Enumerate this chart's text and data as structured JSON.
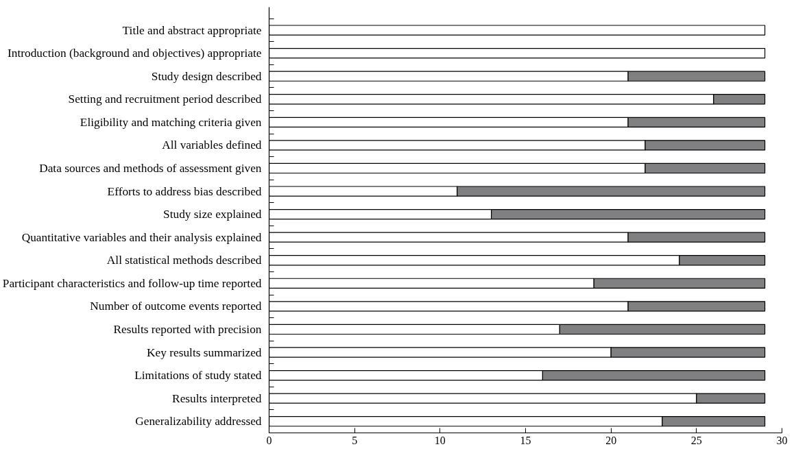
{
  "chart_data": {
    "type": "bar",
    "orientation": "horizontal",
    "stacked": true,
    "categories": [
      "Title and abstract appropriate",
      "Introduction (background and objectives) appropriate",
      "Study design described",
      "Setting and recruitment period described",
      "Eligibility and matching criteria given",
      "All variables defined",
      "Data sources and methods of assessment given",
      "Efforts to address bias described",
      "Study size explained",
      "Quantitative variables and their analysis explained",
      "All statistical methods described",
      "Participant characteristics and follow-up time reported",
      "Number of outcome events reported",
      "Results reported with precision",
      "Key results summarized",
      "Limitations of study stated",
      "Results interpreted",
      "Generalizability addressed"
    ],
    "series": [
      {
        "color": "#ffffff",
        "values": [
          29,
          29,
          21,
          26,
          21,
          22,
          22,
          11,
          13,
          21,
          24,
          19,
          21,
          17,
          20,
          16,
          25,
          23
        ]
      },
      {
        "color": "#808083",
        "values": [
          0,
          0,
          8,
          3,
          8,
          7,
          7,
          18,
          16,
          8,
          5,
          10,
          8,
          12,
          9,
          13,
          4,
          6
        ]
      }
    ],
    "xlim": [
      0,
      30
    ],
    "xticks": [
      0,
      5,
      10,
      15,
      20,
      25,
      30
    ],
    "grid": false
  }
}
